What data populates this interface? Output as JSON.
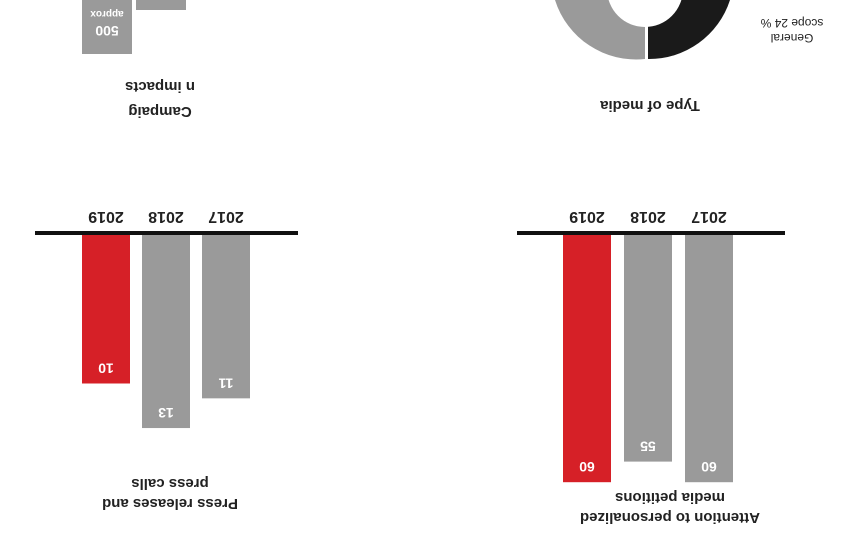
{
  "colors": {
    "gray": "#9a9a9a",
    "red": "#d62027",
    "black": "#1a1a1a",
    "axis": "#111111"
  },
  "chart_data": [
    {
      "type": "bar",
      "title": "Press releases and press calls",
      "title_lines": [
        "Press releases and",
        "press calls"
      ],
      "categories": [
        "2017",
        "2018",
        "2019"
      ],
      "values": [
        11,
        13,
        10
      ],
      "ylim": [
        0,
        14
      ]
    },
    {
      "type": "bar",
      "title": "Attention to personalized media petitions",
      "title_lines": [
        "Attention to personalized",
        "media petitions"
      ],
      "categories": [
        "2017",
        "2018",
        "2019"
      ],
      "values": [
        60,
        55,
        60
      ],
      "ylim": [
        0,
        65
      ]
    },
    {
      "type": "bar",
      "title": "Campaign impacts",
      "title_lines": [
        "Campaig",
        "n impacts"
      ],
      "categories": [
        ""
      ],
      "values": [
        500
      ],
      "value_note": "approx",
      "value_label": "500"
    },
    {
      "type": "pie",
      "title": "Type of media",
      "labels": [
        "General scope 24 %"
      ],
      "label_lines": [
        "General",
        "scope 24 %"
      ]
    }
  ]
}
